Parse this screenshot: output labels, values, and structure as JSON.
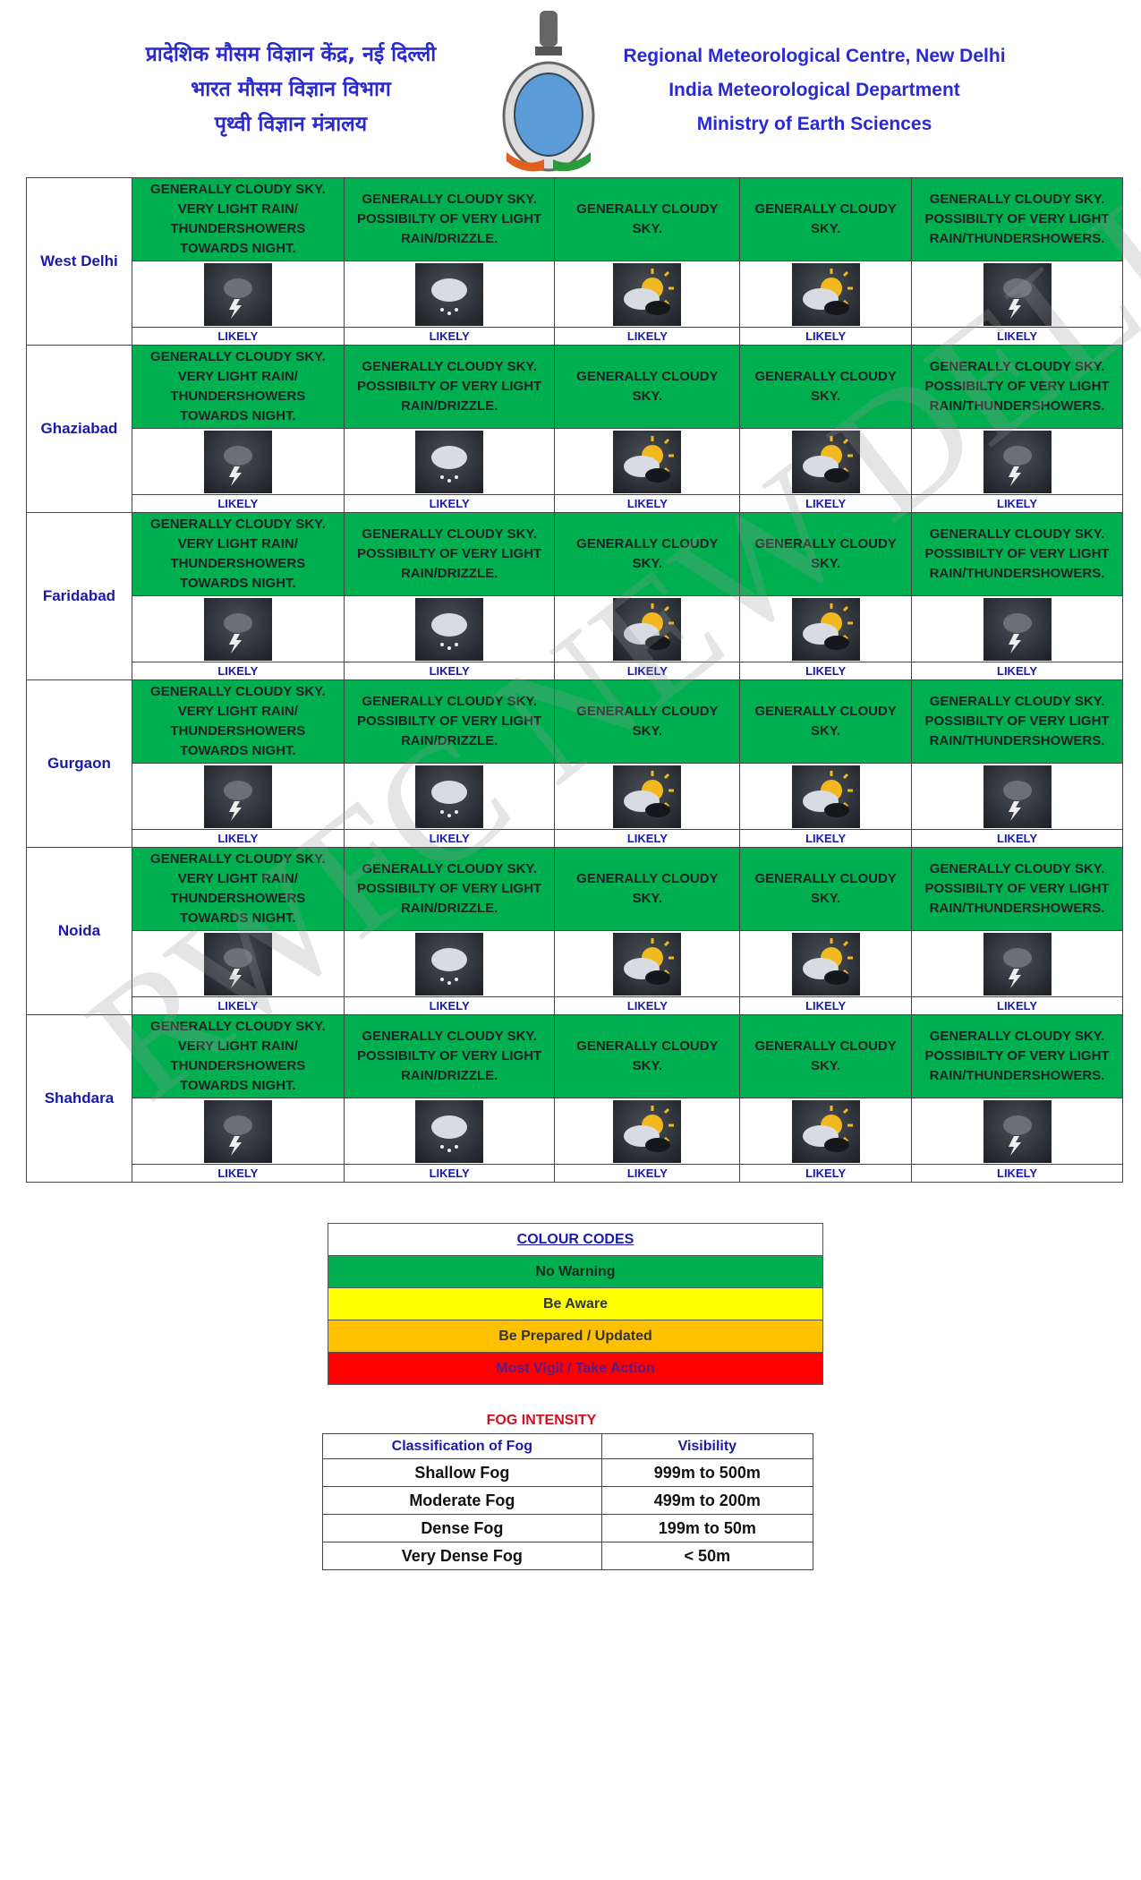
{
  "header": {
    "hindi": [
      "प्रादेशिक मौसम विज्ञान केंद्र, नई दिल्ली",
      "भारत मौसम विज्ञान विभाग",
      "पृथ्वी विज्ञान मंत्रालय"
    ],
    "english": [
      "Regional Meteorological Centre, New Delhi",
      "India Meteorological Department",
      "Ministry of Earth Sciences"
    ]
  },
  "forecast": {
    "day_descriptions": [
      "GENERALLY CLOUDY SKY. VERY LIGHT RAIN/ THUNDERSHOWERS TOWARDS NIGHT.",
      "GENERALLY CLOUDY SKY. POSSIBILTY OF VERY LIGHT RAIN/DRIZZLE.",
      "GENERALLY CLOUDY SKY.",
      "GENERALLY CLOUDY SKY.",
      "GENERALLY CLOUDY SKY. POSSIBILTY OF VERY LIGHT RAIN/THUNDERSHOWERS."
    ],
    "day_icons": [
      "thunderstorm-icon",
      "drizzle-icon",
      "partly-cloudy-icon",
      "partly-cloudy-icon",
      "thunderstorm-icon"
    ],
    "likely": "LIKELY",
    "warning_color": "#00b050",
    "cities": [
      "West Delhi",
      "Ghaziabad",
      "Faridabad",
      "Gurgaon",
      "Noida",
      "Shahdara"
    ]
  },
  "colour_codes": {
    "title": "COLOUR CODES",
    "items": [
      {
        "label": "No Warning",
        "color": "#00b050"
      },
      {
        "label": "Be Aware",
        "color": "#ffff00"
      },
      {
        "label": "Be Prepared / Updated",
        "color": "#ffc000"
      },
      {
        "label": "Most Vigil / Take Action",
        "color": "#ff0000"
      }
    ]
  },
  "fog": {
    "title": "FOG INTENSITY",
    "headers": [
      "Classification of Fog",
      "Visibility"
    ],
    "rows": [
      [
        "Shallow Fog",
        "999m to 500m"
      ],
      [
        "Moderate Fog",
        "499m to 200m"
      ],
      [
        "Dense Fog",
        "199m to 50m"
      ],
      [
        "Very Dense Fog",
        "< 50m"
      ]
    ]
  },
  "watermark": "RWFC NEW DELHI"
}
